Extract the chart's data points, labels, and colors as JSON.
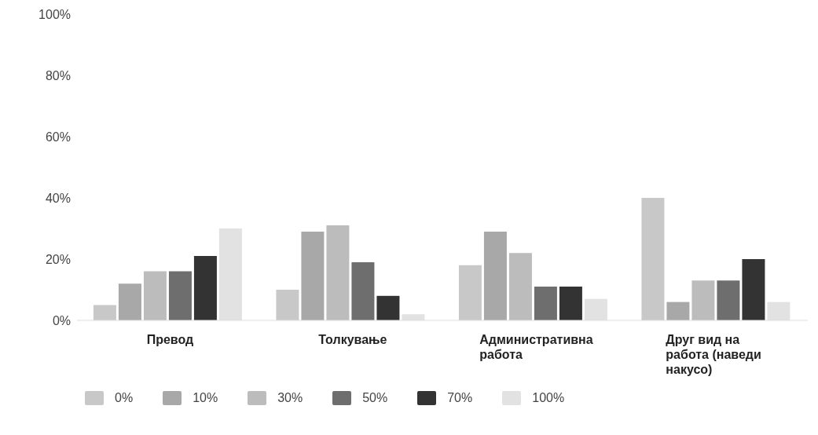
{
  "chart_data": {
    "type": "bar",
    "categories": [
      "Превод",
      "Толкување",
      "Административна работа",
      "Друг вид на работа (наведи накусо)"
    ],
    "series": [
      {
        "name": "0%",
        "color": "#c8c8c8",
        "values": [
          5,
          10,
          18,
          40
        ]
      },
      {
        "name": "10%",
        "color": "#a8a8a8",
        "values": [
          12,
          29,
          29,
          6
        ]
      },
      {
        "name": "30%",
        "color": "#bcbcbc",
        "values": [
          16,
          31,
          22,
          13
        ]
      },
      {
        "name": "50%",
        "color": "#6e6e6e",
        "values": [
          16,
          19,
          11,
          13
        ]
      },
      {
        "name": "70%",
        "color": "#333333",
        "values": [
          21,
          8,
          11,
          20
        ]
      },
      {
        "name": "100%",
        "color": "#e2e2e2",
        "values": [
          30,
          2,
          7,
          6
        ]
      }
    ],
    "ylim": [
      0,
      100
    ],
    "yticks": [
      {
        "value": 0,
        "label": "0%"
      },
      {
        "value": 20,
        "label": "20%"
      },
      {
        "value": 40,
        "label": "40%"
      },
      {
        "value": 60,
        "label": "60%"
      },
      {
        "value": 80,
        "label": "80%"
      },
      {
        "value": 100,
        "label": "100%"
      }
    ],
    "grid": false,
    "legend": "bottom"
  }
}
